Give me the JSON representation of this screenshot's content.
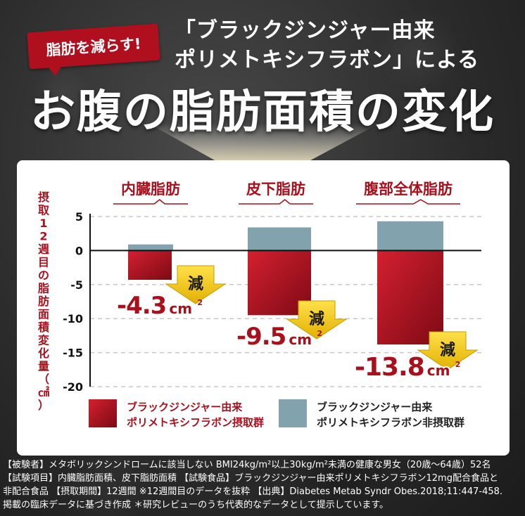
{
  "badge": {
    "label": "脂肪を減らす!"
  },
  "header": {
    "subtitle_line1": "「ブラックジンジャー由来",
    "subtitle_line2": "ポリメトキシフラボン」による",
    "title": "お腹の脂肪面積の変化"
  },
  "colors": {
    "treated": "#b5121e",
    "control": "#82a3ad",
    "accent": "#a8101c",
    "arrow": "#f0c400"
  },
  "chart_data": {
    "type": "bar",
    "categories": [
      "内臓脂肪",
      "皮下脂肪",
      "腹部全体脂肪"
    ],
    "ylabel": "摂取12週目の脂肪面積変化量（㎠）",
    "ylim": [
      -20,
      5
    ],
    "yticks": [
      5,
      0,
      -5,
      -10,
      -15,
      -20
    ],
    "grid": true,
    "series": [
      {
        "name": "ブラックジンジャー由来ポリメトキシフラボン摂取群",
        "legend_line1": "ブラックジンジャー由来",
        "legend_line2": "ポリメトキシフラボン摂取群",
        "values": [
          -4.3,
          -9.5,
          -13.8
        ]
      },
      {
        "name": "ブラックジンジャー由来ポリメトキシフラボン非摂取群",
        "legend_line1": "ブラックジンジャー由来",
        "legend_line2": "ポリメトキシフラボン非摂取群",
        "values": [
          0.9,
          3.4,
          4.3
        ]
      }
    ],
    "annotations": [
      {
        "value": "-4.3",
        "unit": "cm",
        "sup": "2",
        "badge": "減"
      },
      {
        "value": "-9.5",
        "unit": "cm",
        "sup": "2",
        "badge": "減"
      },
      {
        "value": "-13.8",
        "unit": "cm",
        "sup": "2",
        "badge": "減"
      }
    ]
  },
  "notes": [
    "【被験者】メタボリックシンドロームに該当しない BMI24kg/m²以上30kg/m²未満の健康な男女（20歳〜64歳）52名",
    "【試験項目】内臓脂肪面積、皮下脂肪面積 【試験食品】ブラックジンジャー由来ポリメトキシフラボン12mg配合食品と",
    "非配合食品 【摂取期間】12週間 ※12週間目のデータを抜粋 【出典】Diabetes Metab Syndr Obes.2018;11:447-458.",
    "掲載の臨床データに基づき作成 ＊研究レビューのうち代表的なデータとして提示しています。"
  ]
}
